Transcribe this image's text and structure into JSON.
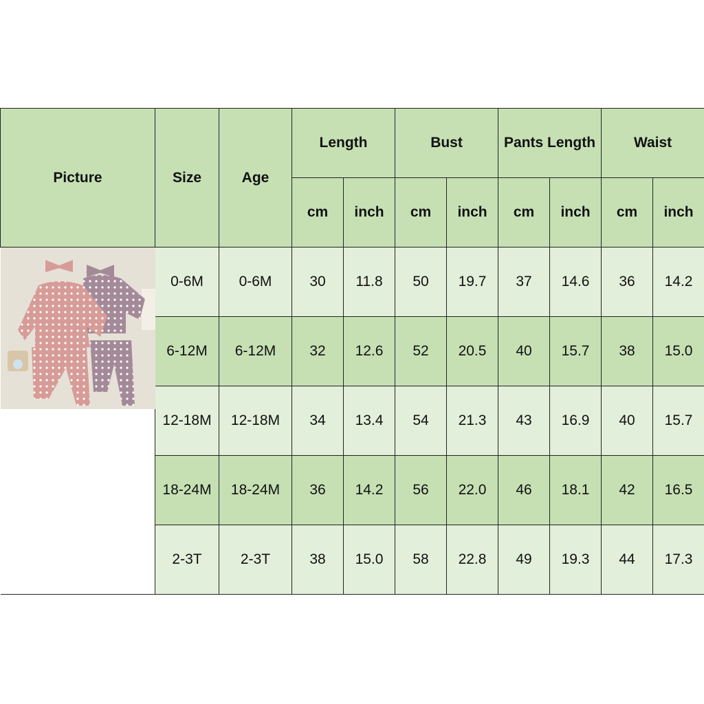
{
  "colors": {
    "header": "#c6e0b4",
    "row_light": "#e2efda",
    "row_dark": "#c6e0b4"
  },
  "headers": {
    "picture": "Picture",
    "size": "Size",
    "age": "Age",
    "groups": [
      "Length",
      "Bust",
      "Pants Length",
      "Waist"
    ],
    "units": [
      "cm",
      "inch",
      "cm",
      "inch",
      "cm",
      "inch",
      "cm",
      "inch"
    ]
  },
  "rows": [
    {
      "size": "0-6M",
      "age": "0-6M",
      "values": [
        "30",
        "11.8",
        "50",
        "19.7",
        "37",
        "14.6",
        "36",
        "14.2"
      ]
    },
    {
      "size": "6-12M",
      "age": "6-12M",
      "values": [
        "32",
        "12.6",
        "52",
        "20.5",
        "40",
        "15.7",
        "38",
        "15.0"
      ]
    },
    {
      "size": "12-18M",
      "age": "12-18M",
      "values": [
        "34",
        "13.4",
        "54",
        "21.3",
        "43",
        "16.9",
        "40",
        "15.7"
      ]
    },
    {
      "size": "18-24M",
      "age": "18-24M",
      "values": [
        "36",
        "14.2",
        "56",
        "22.0",
        "46",
        "18.1",
        "42",
        "16.5"
      ]
    },
    {
      "size": "2-3T",
      "age": "2-3T",
      "values": [
        "38",
        "15.0",
        "58",
        "22.8",
        "49",
        "19.3",
        "44",
        "17.3"
      ]
    }
  ]
}
